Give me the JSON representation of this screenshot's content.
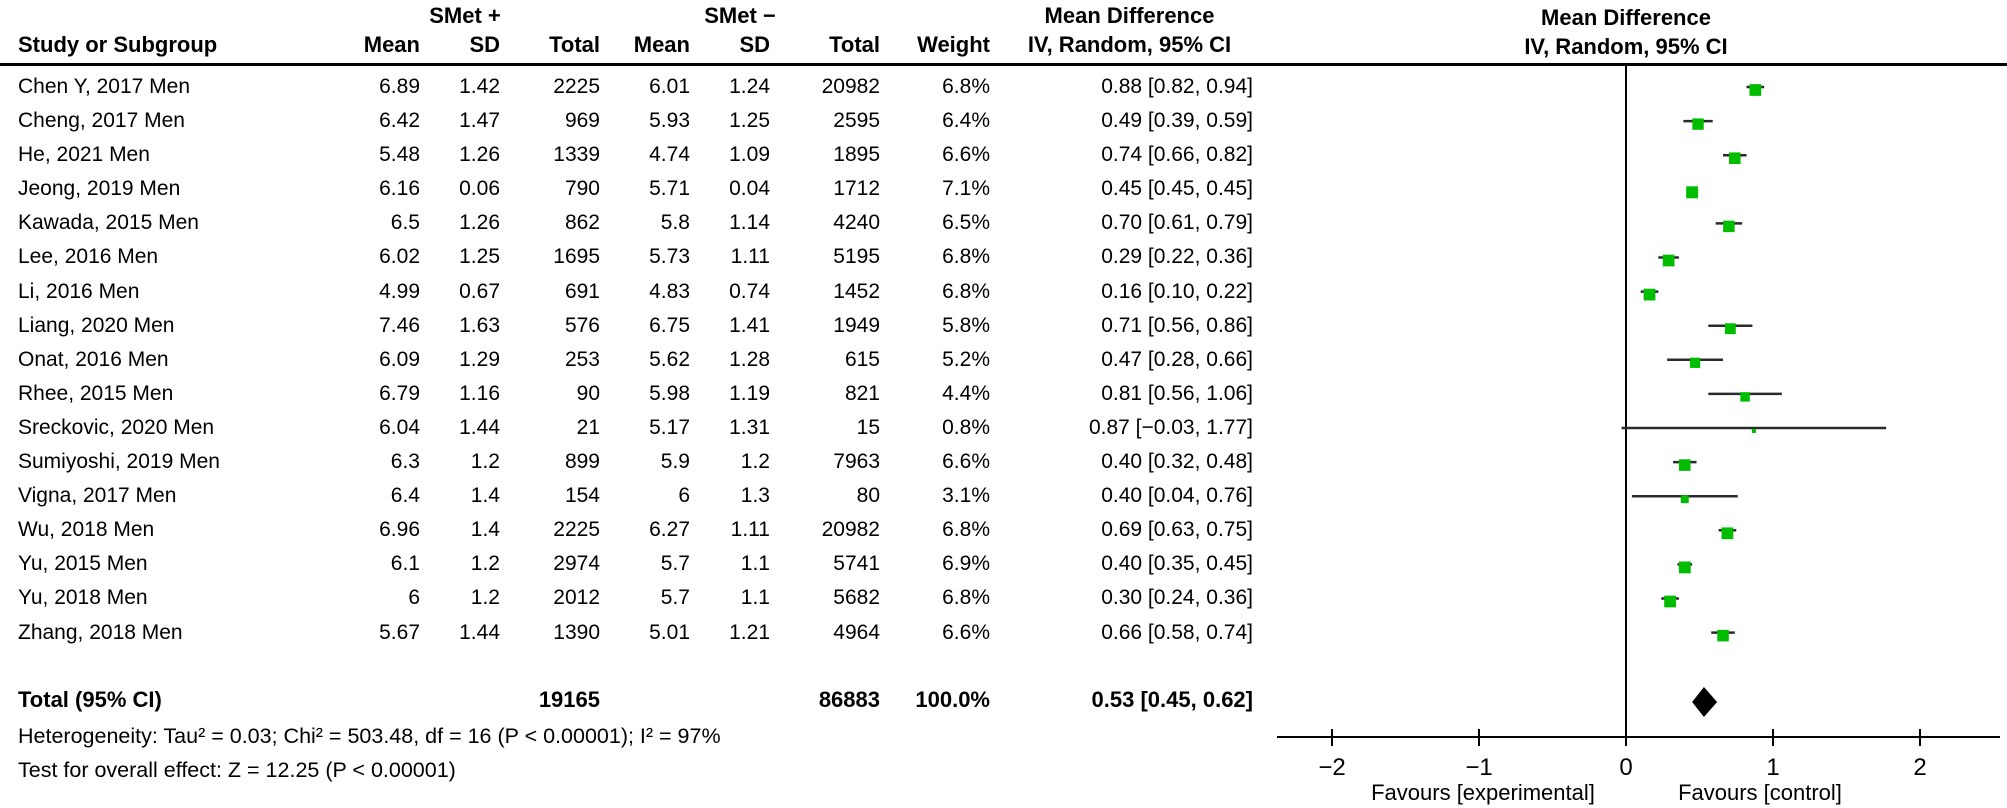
{
  "header": {
    "group1": "SMet +",
    "group2": "SMet −",
    "study_col": "Study or Subgroup",
    "mean_col": "Mean",
    "sd_col": "SD",
    "total_col": "Total",
    "weight_col": "Weight",
    "effect_title": "Mean Difference",
    "effect_subtitle": "IV, Random, 95% CI"
  },
  "chart_data": {
    "type": "forest",
    "effect_measure": "Mean Difference",
    "model": "IV, Random, 95% CI",
    "studies": [
      {
        "name": "Chen Y, 2017 Men",
        "mean1": "6.89",
        "sd1": "1.42",
        "n1": "2225",
        "mean2": "6.01",
        "sd2": "1.24",
        "n2": "20982",
        "weight": "6.8%",
        "weight_pct": 6.8,
        "est": 0.88,
        "lo": 0.82,
        "hi": 0.94,
        "ci_text": "0.88 [0.82, 0.94]"
      },
      {
        "name": "Cheng, 2017 Men",
        "mean1": "6.42",
        "sd1": "1.47",
        "n1": "969",
        "mean2": "5.93",
        "sd2": "1.25",
        "n2": "2595",
        "weight": "6.4%",
        "weight_pct": 6.4,
        "est": 0.49,
        "lo": 0.39,
        "hi": 0.59,
        "ci_text": "0.49 [0.39, 0.59]"
      },
      {
        "name": "He, 2021 Men",
        "mean1": "5.48",
        "sd1": "1.26",
        "n1": "1339",
        "mean2": "4.74",
        "sd2": "1.09",
        "n2": "1895",
        "weight": "6.6%",
        "weight_pct": 6.6,
        "est": 0.74,
        "lo": 0.66,
        "hi": 0.82,
        "ci_text": "0.74 [0.66, 0.82]"
      },
      {
        "name": "Jeong, 2019 Men",
        "mean1": "6.16",
        "sd1": "0.06",
        "n1": "790",
        "mean2": "5.71",
        "sd2": "0.04",
        "n2": "1712",
        "weight": "7.1%",
        "weight_pct": 7.1,
        "est": 0.45,
        "lo": 0.45,
        "hi": 0.45,
        "ci_text": "0.45 [0.45, 0.45]"
      },
      {
        "name": "Kawada, 2015 Men",
        "mean1": "6.5",
        "sd1": "1.26",
        "n1": "862",
        "mean2": "5.8",
        "sd2": "1.14",
        "n2": "4240",
        "weight": "6.5%",
        "weight_pct": 6.5,
        "est": 0.7,
        "lo": 0.61,
        "hi": 0.79,
        "ci_text": "0.70 [0.61, 0.79]"
      },
      {
        "name": "Lee, 2016 Men",
        "mean1": "6.02",
        "sd1": "1.25",
        "n1": "1695",
        "mean2": "5.73",
        "sd2": "1.11",
        "n2": "5195",
        "weight": "6.8%",
        "weight_pct": 6.8,
        "est": 0.29,
        "lo": 0.22,
        "hi": 0.36,
        "ci_text": "0.29 [0.22, 0.36]"
      },
      {
        "name": "Li, 2016 Men",
        "mean1": "4.99",
        "sd1": "0.67",
        "n1": "691",
        "mean2": "4.83",
        "sd2": "0.74",
        "n2": "1452",
        "weight": "6.8%",
        "weight_pct": 6.8,
        "est": 0.16,
        "lo": 0.1,
        "hi": 0.22,
        "ci_text": "0.16 [0.10, 0.22]"
      },
      {
        "name": "Liang, 2020 Men",
        "mean1": "7.46",
        "sd1": "1.63",
        "n1": "576",
        "mean2": "6.75",
        "sd2": "1.41",
        "n2": "1949",
        "weight": "5.8%",
        "weight_pct": 5.8,
        "est": 0.71,
        "lo": 0.56,
        "hi": 0.86,
        "ci_text": "0.71 [0.56, 0.86]"
      },
      {
        "name": "Onat, 2016 Men",
        "mean1": "6.09",
        "sd1": "1.29",
        "n1": "253",
        "mean2": "5.62",
        "sd2": "1.28",
        "n2": "615",
        "weight": "5.2%",
        "weight_pct": 5.2,
        "est": 0.47,
        "lo": 0.28,
        "hi": 0.66,
        "ci_text": "0.47 [0.28, 0.66]"
      },
      {
        "name": "Rhee, 2015 Men",
        "mean1": "6.79",
        "sd1": "1.16",
        "n1": "90",
        "mean2": "5.98",
        "sd2": "1.19",
        "n2": "821",
        "weight": "4.4%",
        "weight_pct": 4.4,
        "est": 0.81,
        "lo": 0.56,
        "hi": 1.06,
        "ci_text": "0.81 [0.56, 1.06]"
      },
      {
        "name": "Sreckovic, 2020 Men",
        "mean1": "6.04",
        "sd1": "1.44",
        "n1": "21",
        "mean2": "5.17",
        "sd2": "1.31",
        "n2": "15",
        "weight": "0.8%",
        "weight_pct": 0.8,
        "est": 0.87,
        "lo": -0.03,
        "hi": 1.77,
        "ci_text": "0.87 [−0.03, 1.77]"
      },
      {
        "name": "Sumiyoshi, 2019 Men",
        "mean1": "6.3",
        "sd1": "1.2",
        "n1": "899",
        "mean2": "5.9",
        "sd2": "1.2",
        "n2": "7963",
        "weight": "6.6%",
        "weight_pct": 6.6,
        "est": 0.4,
        "lo": 0.32,
        "hi": 0.48,
        "ci_text": "0.40 [0.32, 0.48]"
      },
      {
        "name": "Vigna, 2017 Men",
        "mean1": "6.4",
        "sd1": "1.4",
        "n1": "154",
        "mean2": "6",
        "sd2": "1.3",
        "n2": "80",
        "weight": "3.1%",
        "weight_pct": 3.1,
        "est": 0.4,
        "lo": 0.04,
        "hi": 0.76,
        "ci_text": "0.40 [0.04, 0.76]"
      },
      {
        "name": "Wu, 2018 Men",
        "mean1": "6.96",
        "sd1": "1.4",
        "n1": "2225",
        "mean2": "6.27",
        "sd2": "1.11",
        "n2": "20982",
        "weight": "6.8%",
        "weight_pct": 6.8,
        "est": 0.69,
        "lo": 0.63,
        "hi": 0.75,
        "ci_text": "0.69 [0.63, 0.75]"
      },
      {
        "name": "Yu, 2015 Men",
        "mean1": "6.1",
        "sd1": "1.2",
        "n1": "2974",
        "mean2": "5.7",
        "sd2": "1.1",
        "n2": "5741",
        "weight": "6.9%",
        "weight_pct": 6.9,
        "est": 0.4,
        "lo": 0.35,
        "hi": 0.45,
        "ci_text": "0.40 [0.35, 0.45]"
      },
      {
        "name": "Yu, 2018 Men",
        "mean1": "6",
        "sd1": "1.2",
        "n1": "2012",
        "mean2": "5.7",
        "sd2": "1.1",
        "n2": "5682",
        "weight": "6.8%",
        "weight_pct": 6.8,
        "est": 0.3,
        "lo": 0.24,
        "hi": 0.36,
        "ci_text": "0.30 [0.24, 0.36]"
      },
      {
        "name": "Zhang, 2018 Men",
        "mean1": "5.67",
        "sd1": "1.44",
        "n1": "1390",
        "mean2": "5.01",
        "sd2": "1.21",
        "n2": "4964",
        "weight": "6.6%",
        "weight_pct": 6.6,
        "est": 0.66,
        "lo": 0.58,
        "hi": 0.74,
        "ci_text": "0.66 [0.58, 0.74]"
      }
    ],
    "total": {
      "label": "Total (95% CI)",
      "n1": "19165",
      "n2": "86883",
      "weight": "100.0%",
      "est": 0.53,
      "lo": 0.45,
      "hi": 0.62,
      "ci_text": "0.53 [0.45, 0.62]"
    },
    "heterogeneity": "Heterogeneity: Tau² = 0.03; Chi² = 503.48, df = 16 (P < 0.00001); I² = 97%",
    "overall_effect": "Test for overall effect: Z = 12.25 (P < 0.00001)",
    "axis": {
      "ticks": [
        -2,
        -1,
        0,
        1,
        2
      ],
      "tick_labels": [
        "−2",
        "−1",
        "0",
        "1",
        "2"
      ],
      "favours_left": "Favours [experimental]",
      "favours_right": "Favours [control]"
    },
    "colors": {
      "marker_green": "#00bd00",
      "ci_line": "#2b2b2b",
      "diamond": "#000000",
      "axis": "#000000"
    }
  }
}
